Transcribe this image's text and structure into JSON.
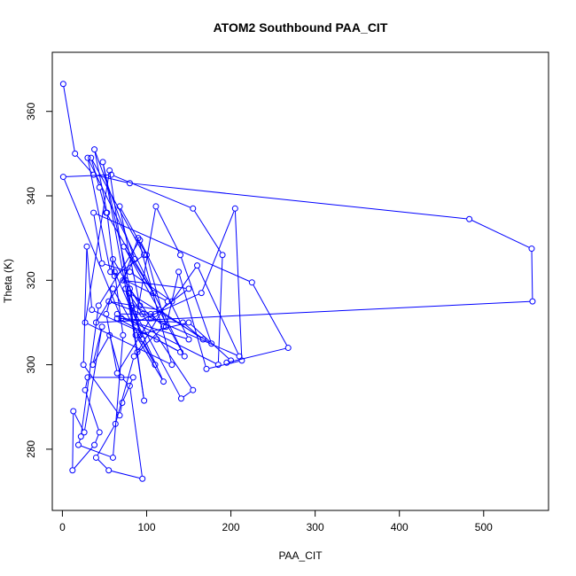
{
  "chart_data": {
    "type": "line",
    "title": "ATOM2 Southbound PAA_CIT",
    "xlabel": "PAA_CIT",
    "ylabel": "Theta (K)",
    "xlim": [
      -12,
      577
    ],
    "ylim": [
      265.5,
      374
    ],
    "xticks": [
      0,
      100,
      200,
      300,
      400,
      500
    ],
    "yticks": [
      280,
      300,
      320,
      340,
      360
    ],
    "grid": false,
    "legend": "none",
    "series": [
      {
        "color": "#0000ff",
        "marker": "open-circle",
        "points": [
          [
            1,
            366.5
          ],
          [
            15,
            350
          ],
          [
            37,
            345
          ],
          [
            80,
            343
          ],
          [
            483,
            334.5
          ],
          [
            557,
            327.5
          ],
          [
            558,
            315
          ],
          [
            40,
            310
          ],
          [
            86,
            325
          ],
          [
            38,
            351
          ],
          [
            53,
            336
          ],
          [
            62,
            321
          ],
          [
            97,
            326
          ],
          [
            34,
            349
          ],
          [
            44,
            342
          ],
          [
            52,
            336
          ],
          [
            108,
            317
          ],
          [
            73,
            328
          ],
          [
            145,
            302
          ],
          [
            30,
            349
          ],
          [
            57,
            322
          ],
          [
            60,
            325
          ],
          [
            92,
            314
          ],
          [
            68,
            337.5
          ],
          [
            100,
            326
          ],
          [
            123,
            309
          ],
          [
            138,
            322
          ],
          [
            171,
            299
          ],
          [
            213,
            301
          ],
          [
            205,
            337
          ],
          [
            165,
            317
          ],
          [
            87,
            310
          ],
          [
            111,
            337.5
          ],
          [
            140,
            326
          ],
          [
            177,
            305
          ],
          [
            79,
            317
          ],
          [
            97,
            291.5
          ],
          [
            56,
            346
          ],
          [
            27,
            310
          ],
          [
            130,
            300
          ],
          [
            90,
            330
          ],
          [
            72,
            320
          ],
          [
            150,
            318
          ],
          [
            110,
            312
          ],
          [
            65,
            312
          ],
          [
            185,
            300
          ],
          [
            190,
            326
          ],
          [
            155,
            337
          ],
          [
            58,
            345
          ],
          [
            1,
            344.5
          ],
          [
            70,
            311
          ],
          [
            150,
            306
          ],
          [
            92,
            329.5
          ],
          [
            43,
            314
          ],
          [
            22,
            283
          ],
          [
            19,
            281
          ],
          [
            60,
            278
          ],
          [
            72,
            307
          ],
          [
            62,
            322
          ],
          [
            120,
            296
          ],
          [
            87,
            307
          ],
          [
            150,
            310
          ],
          [
            200,
            301
          ],
          [
            195,
            300.5
          ],
          [
            268,
            304
          ],
          [
            225,
            319.5
          ],
          [
            37,
            336
          ],
          [
            47,
            324
          ],
          [
            80,
            322
          ],
          [
            130,
            315
          ],
          [
            160,
            323.5
          ],
          [
            210,
            302
          ],
          [
            95,
            312
          ],
          [
            55,
            315
          ],
          [
            115,
            313
          ],
          [
            167,
            306
          ],
          [
            143,
            310
          ],
          [
            65,
            311
          ],
          [
            140,
            303
          ],
          [
            112,
            306
          ],
          [
            35,
            313
          ],
          [
            29,
            328
          ],
          [
            25,
            300
          ],
          [
            68,
            288
          ],
          [
            71,
            291
          ],
          [
            84,
            297
          ],
          [
            30,
            297
          ],
          [
            27,
            294
          ],
          [
            44,
            284
          ],
          [
            38,
            281
          ],
          [
            12,
            275
          ],
          [
            13,
            289
          ],
          [
            26,
            284
          ],
          [
            47,
            309
          ],
          [
            36,
            300
          ],
          [
            56,
            307
          ],
          [
            70,
            297
          ],
          [
            80,
            295
          ],
          [
            95,
            273
          ],
          [
            55,
            275
          ],
          [
            40,
            278
          ],
          [
            63,
            286
          ],
          [
            85,
            302
          ],
          [
            120,
            309
          ],
          [
            105,
            312
          ],
          [
            82,
            314
          ],
          [
            141,
            292
          ],
          [
            155,
            294
          ],
          [
            75,
            318
          ],
          [
            95,
            306
          ],
          [
            110,
            300
          ],
          [
            60,
            318
          ],
          [
            52,
            312
          ],
          [
            65,
            298
          ],
          [
            105,
            311
          ],
          [
            80,
            318
          ],
          [
            92,
            307
          ],
          [
            48,
            348
          ],
          [
            89,
            303
          ],
          [
            125,
            315
          ],
          [
            75,
            320
          ]
        ]
      }
    ]
  }
}
